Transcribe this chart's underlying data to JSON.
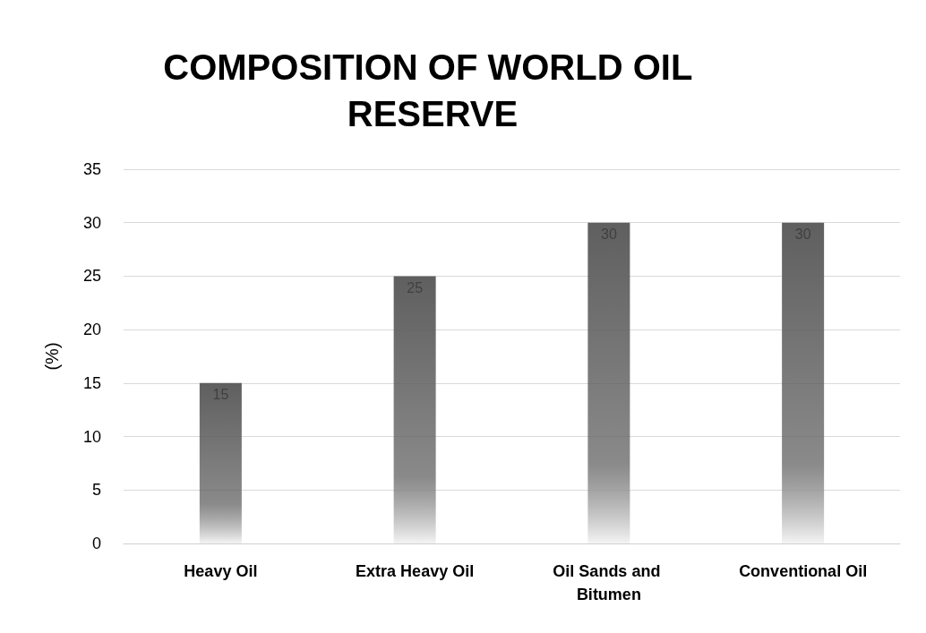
{
  "chart_data": {
    "type": "bar",
    "title": "COMPOSITION OF WORLD OIL RESERVE",
    "ylabel": "(%)",
    "categories": [
      "Heavy Oil",
      "Extra Heavy Oil",
      "Oil Sands and Bitumen",
      "Conventional Oil"
    ],
    "values": [
      15,
      25,
      30,
      30
    ],
    "color": "#5f5f5f",
    "ylim": [
      0,
      35
    ],
    "yticks": [
      0,
      5,
      10,
      15,
      20,
      25,
      30,
      35
    ],
    "grid": "y",
    "data_labels": true
  }
}
